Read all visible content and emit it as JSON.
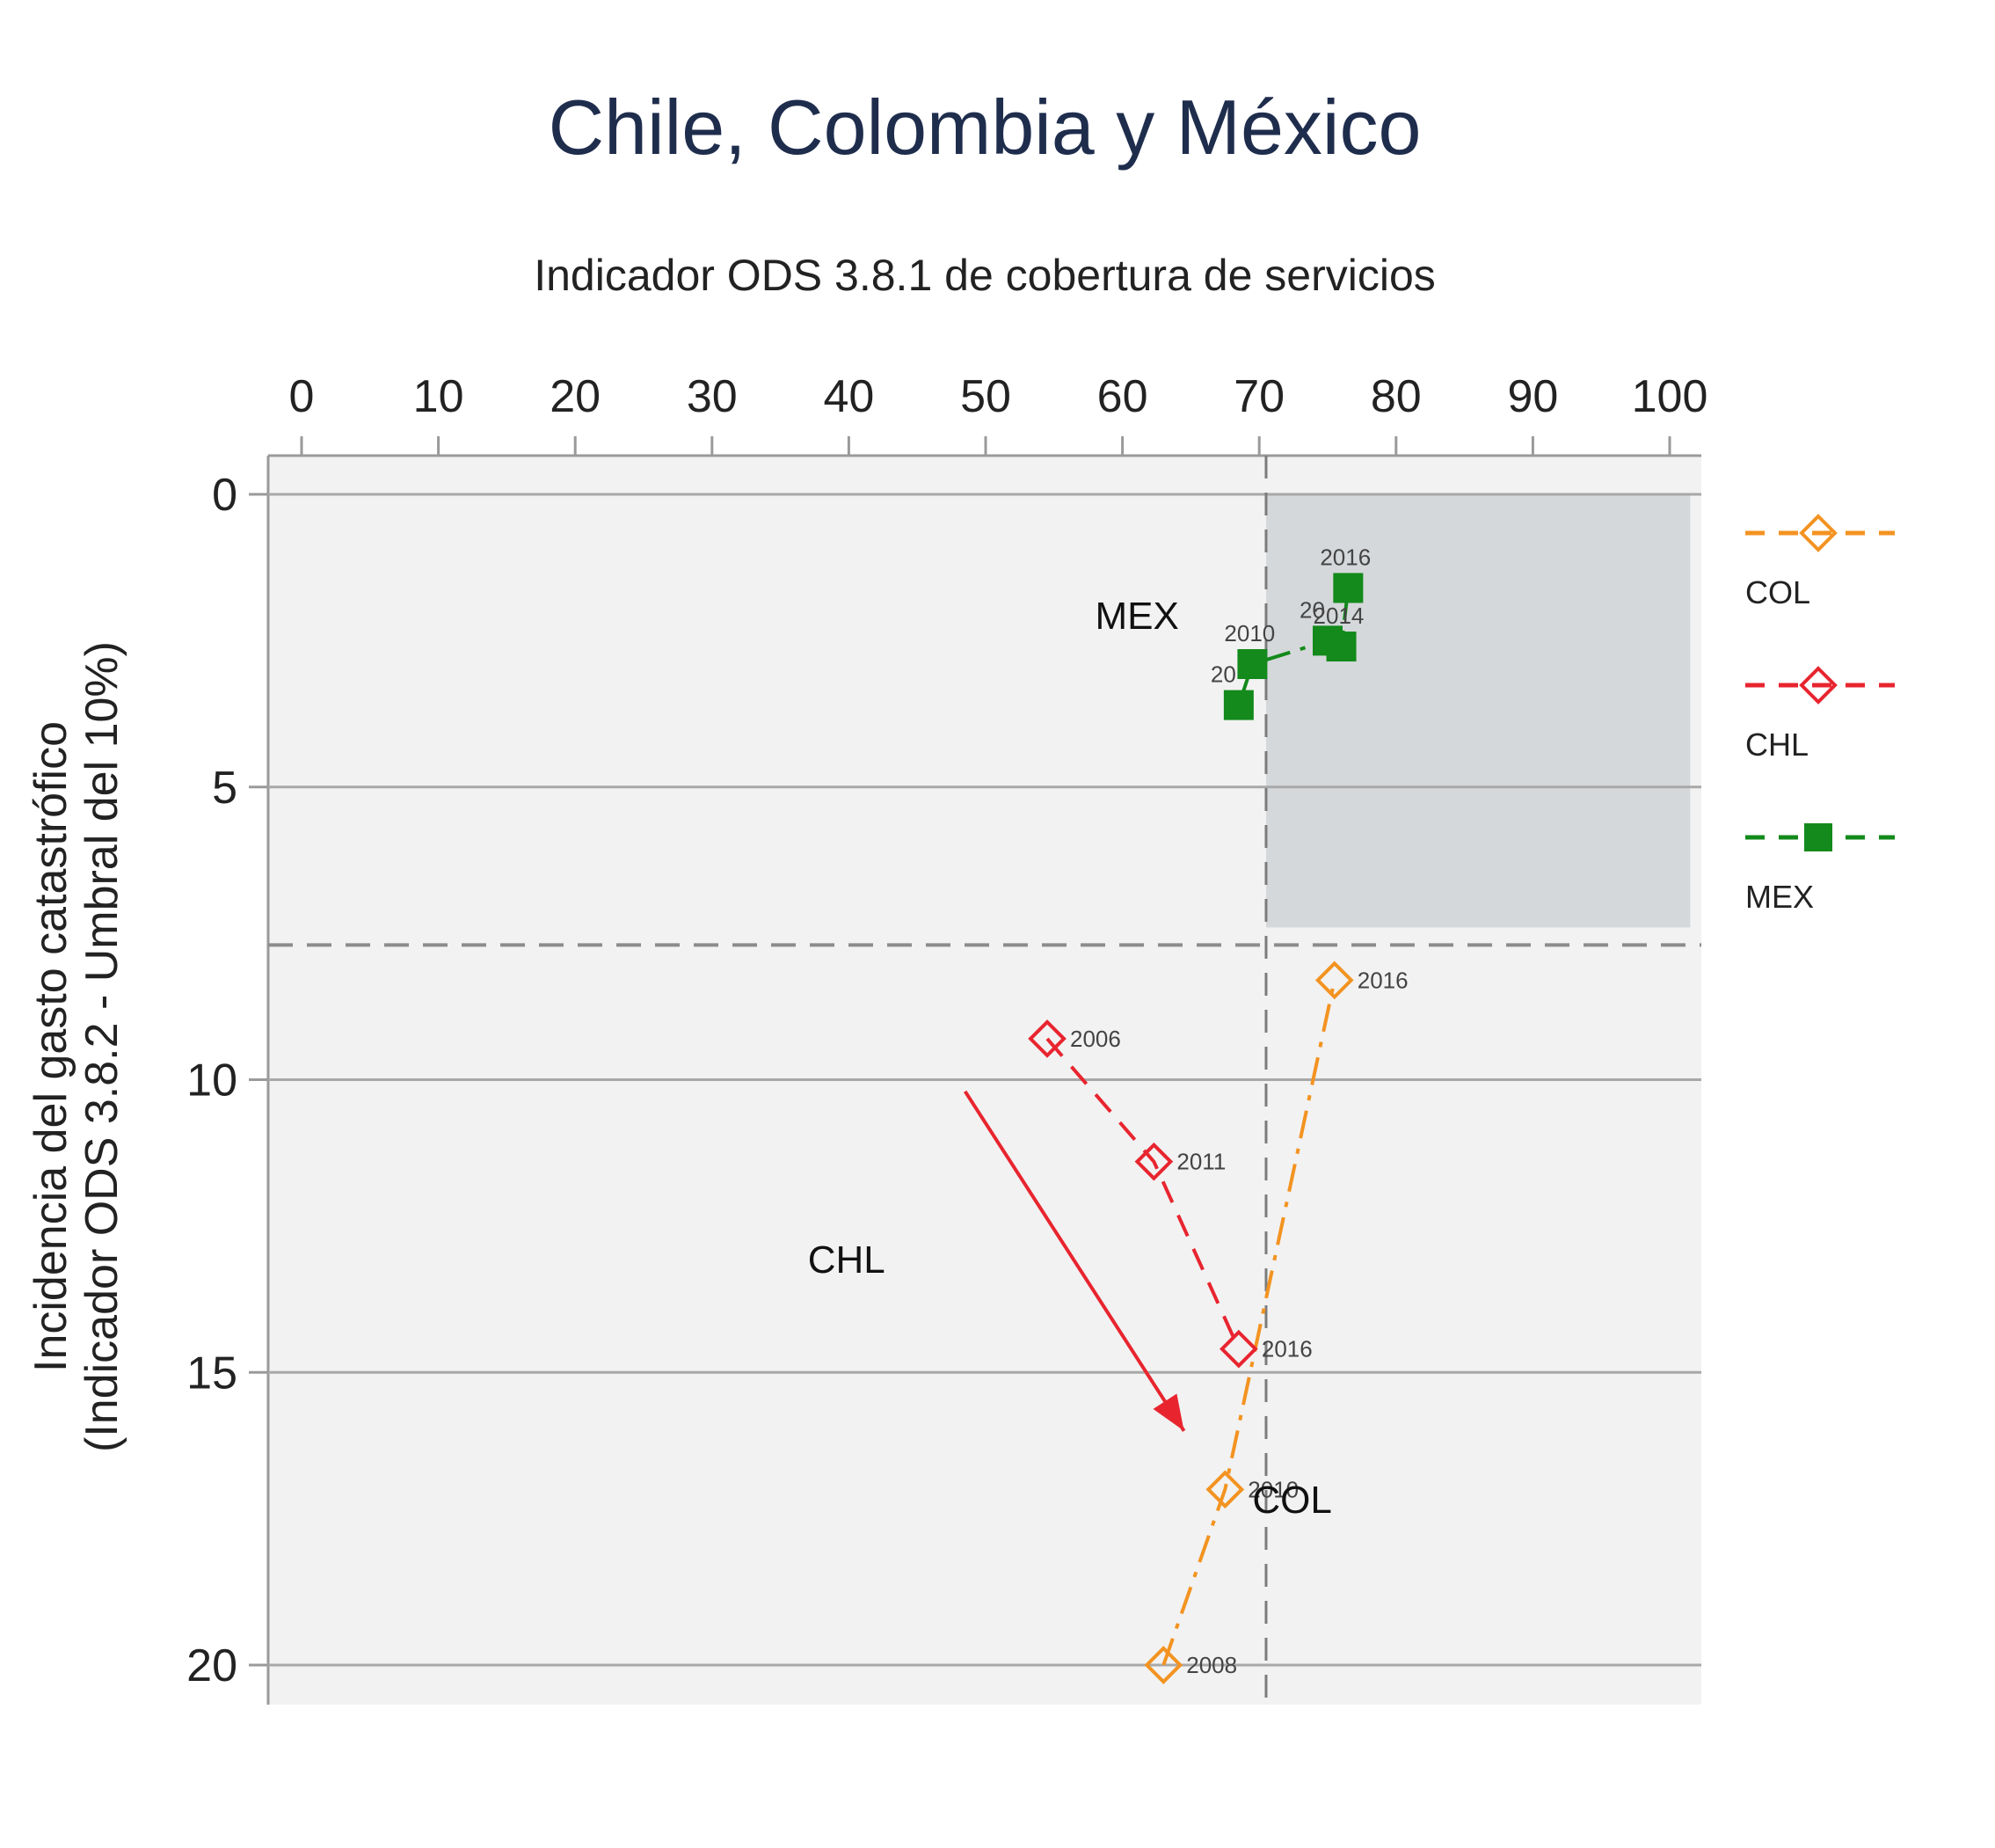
{
  "chart_data": {
    "type": "scatter",
    "title": "Chile, Colombia y México",
    "subtitle": "Indicador ODS 3.8.1 de cobertura de servicios",
    "xlabel": "",
    "ylabel_line1": "Incidencia del gasto catastrófico",
    "ylabel_line2": "(Indicador ODS 3.8.2 - Umbral del 10%)",
    "xlim": [
      0,
      100
    ],
    "ylim": [
      0,
      20
    ],
    "y_inverted": true,
    "x_axis_position": "top",
    "x_ticks": [
      "0",
      "10",
      "20",
      "30",
      "40",
      "50",
      "60",
      "70",
      "80",
      "90",
      "100"
    ],
    "y_ticks": [
      "0",
      "5",
      "10",
      "15",
      "20"
    ],
    "reference_lines": {
      "x": 70.5,
      "y": 7.7
    },
    "shaded_region": {
      "x": [
        70.5,
        101.5
      ],
      "y": [
        0,
        7.4
      ]
    },
    "legend_position": "right",
    "series": [
      {
        "name": "COL",
        "color": "#f39321",
        "marker": "diamond-open",
        "line_style": "dash-dot",
        "points": [
          {
            "x": 63,
            "y": 20.0,
            "label": "2008"
          },
          {
            "x": 67.5,
            "y": 17.0,
            "label": "2010"
          },
          {
            "x": 75.5,
            "y": 8.3,
            "label": "2016"
          }
        ]
      },
      {
        "name": "CHL",
        "color": "#e8252f",
        "marker": "diamond-open",
        "line_style": "dashed",
        "points": [
          {
            "x": 54.5,
            "y": 9.3,
            "label": "2006"
          },
          {
            "x": 62.3,
            "y": 11.4,
            "label": "2011"
          },
          {
            "x": 68.5,
            "y": 14.6,
            "label": "2016"
          }
        ]
      },
      {
        "name": "MEX",
        "color": "#138a1b",
        "marker": "square-filled",
        "line_style": "dash-dot",
        "points": [
          {
            "x": 68.5,
            "y": 3.6,
            "label": "20"
          },
          {
            "x": 69.5,
            "y": 2.9,
            "label": "2010"
          },
          {
            "x": 75,
            "y": 2.5,
            "label": "20"
          },
          {
            "x": 76,
            "y": 2.6,
            "label": "2014"
          },
          {
            "x": 76.5,
            "y": 1.6,
            "label": "2016"
          }
        ]
      }
    ],
    "annotations": [
      {
        "text": "MEX",
        "x": 58,
        "y": 2.3
      },
      {
        "text": "CHL",
        "x": 37,
        "y": 13.3
      },
      {
        "text": "COL",
        "x": 69.5,
        "y": 17.4
      }
    ],
    "arrow": {
      "from": [
        48.5,
        10.2
      ],
      "to": [
        64.5,
        16.0
      ],
      "color": "#e8252f"
    }
  }
}
